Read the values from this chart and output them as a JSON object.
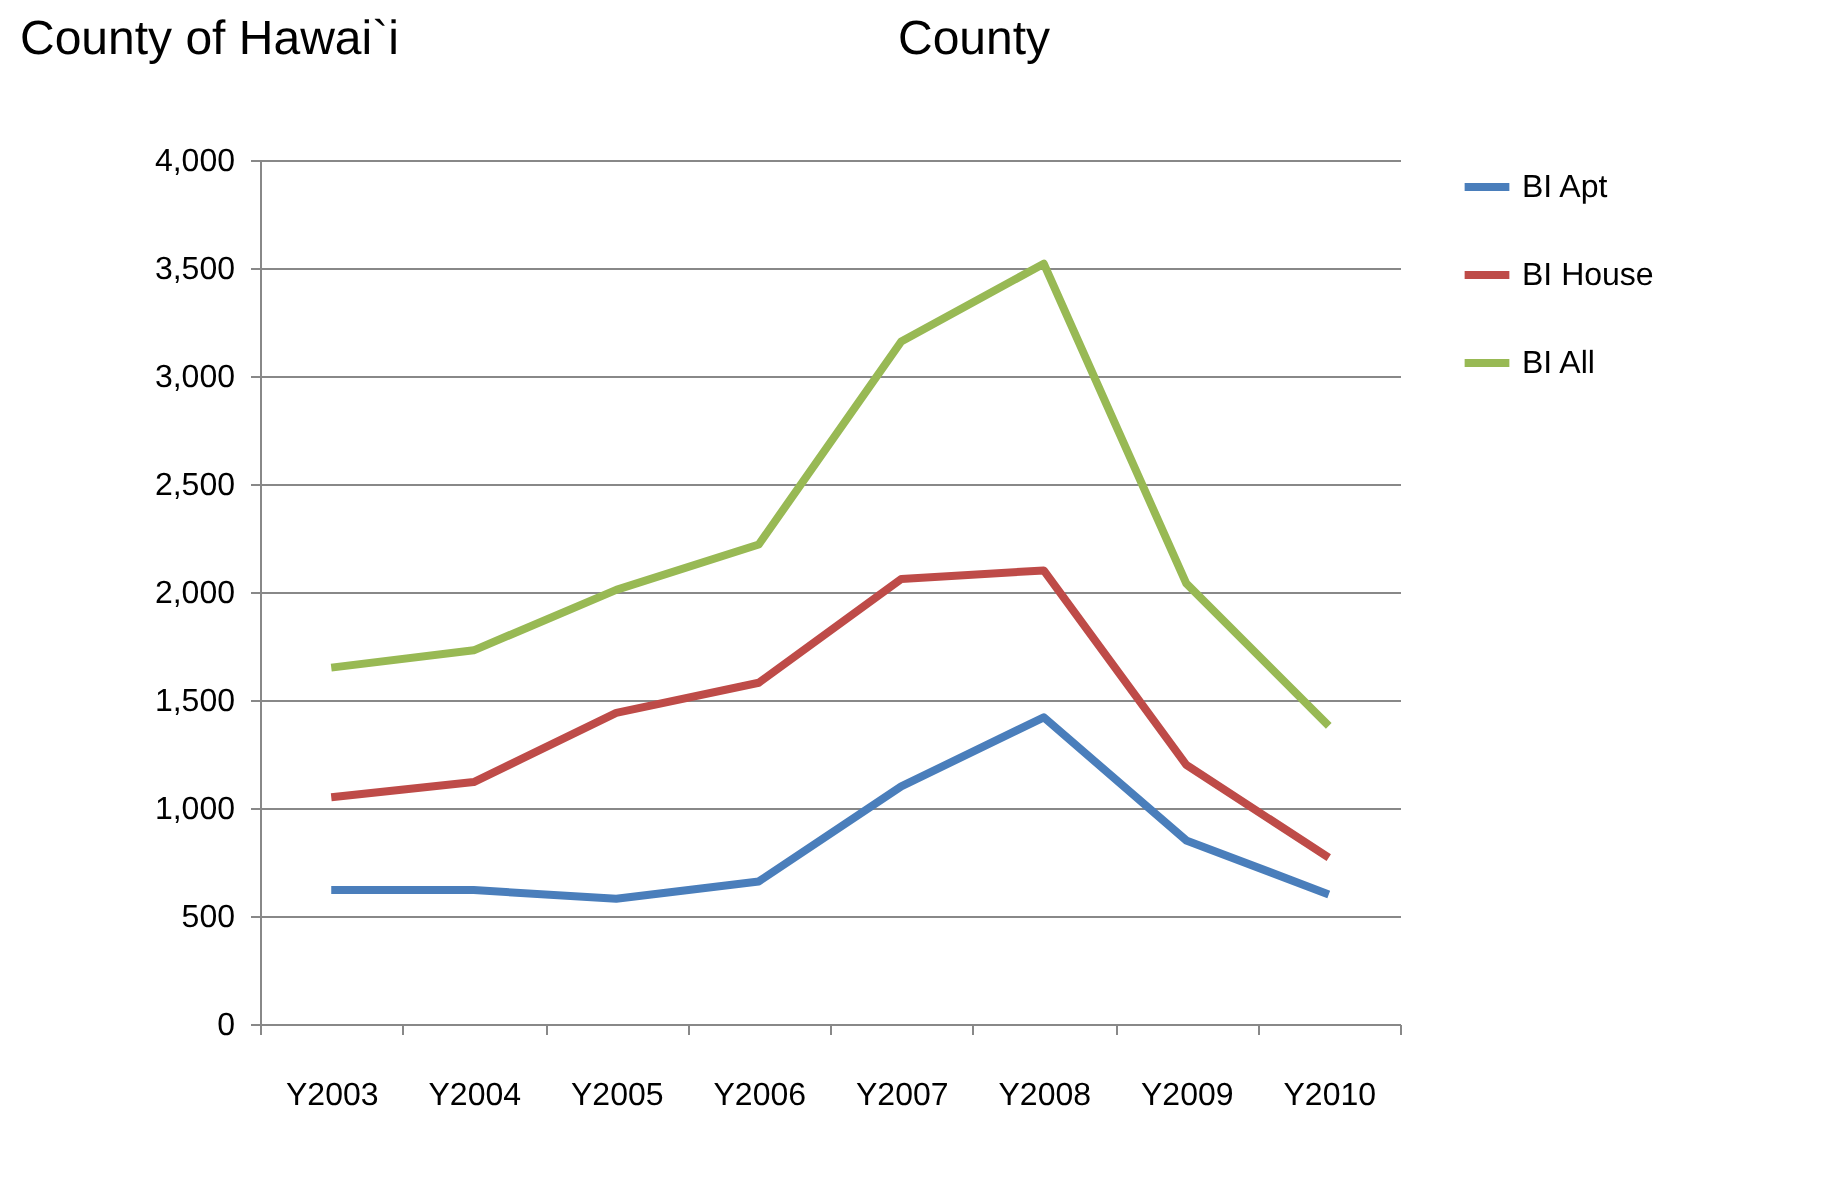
{
  "chart_data": {
    "type": "line",
    "title": "County of Hawai`i",
    "annotations": [
      "County"
    ],
    "categories": [
      "Y2003",
      "Y2004",
      "Y2005",
      "Y2006",
      "Y2007",
      "Y2008",
      "Y2009",
      "Y2010"
    ],
    "series": [
      {
        "name": "BI Apt",
        "color": "#4a7ebb",
        "values": [
          620,
          620,
          580,
          660,
          1100,
          1420,
          850,
          600
        ]
      },
      {
        "name": "BI House",
        "color": "#be4b48",
        "values": [
          1050,
          1120,
          1440,
          1580,
          2060,
          2100,
          1200,
          770
        ]
      },
      {
        "name": "BI All",
        "color": "#98b954",
        "values": [
          1650,
          1730,
          2010,
          2220,
          3160,
          3520,
          2040,
          1380
        ]
      }
    ],
    "ylim": [
      0,
      4000
    ],
    "yticks": [
      0,
      500,
      {
        "value": 1000,
        "label": "1,000"
      },
      {
        "value": 1500,
        "label": "1,500"
      },
      {
        "value": 2000,
        "label": "2,000"
      },
      {
        "value": 2500,
        "label": "2,500"
      },
      {
        "value": 3000,
        "label": "3,000"
      },
      {
        "value": 3500,
        "label": "3,500"
      },
      {
        "value": 4000,
        "label": "4,000"
      }
    ],
    "grid": "y",
    "legend": "right",
    "marker": "none",
    "line_style": "solid"
  }
}
